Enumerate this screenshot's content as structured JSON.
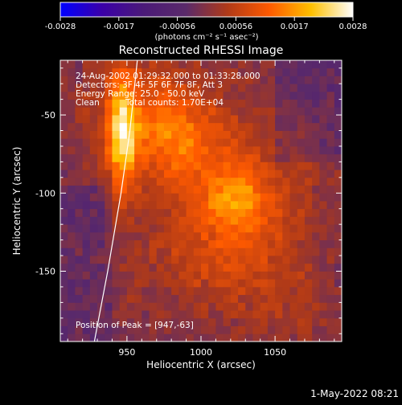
{
  "chart_data": {
    "type": "heatmap",
    "title": "Reconstructed RHESSI Image",
    "xlabel": "Heliocentric X (arcsec)",
    "ylabel": "Heliocentric Y (arcsec)",
    "xlim": [
      905,
      1095
    ],
    "ylim": [
      -195,
      -15
    ],
    "x_ticks": [
      950,
      1000,
      1050
    ],
    "y_ticks": [
      -50,
      -100,
      -150
    ],
    "grid": false,
    "colorbar": {
      "position": "top",
      "min": -0.0028,
      "max": 0.0028,
      "ticks": [
        "-0.0028",
        "-0.0017",
        "-0.00056",
        "0.00056",
        "0.0017",
        "0.0028"
      ],
      "unit_label": "(photons cm⁻² s⁻¹ asec⁻²)",
      "colors": [
        "#0000ff",
        "#3b00a8",
        "#4b1a78",
        "#5a2a6a",
        "#b03a18",
        "#ff5a00",
        "#ffc000",
        "#ffffff"
      ]
    },
    "peak": {
      "x": 947,
      "y": -63,
      "value": 0.0028
    },
    "sources": [
      {
        "x": 947,
        "y": -63,
        "sx": 7,
        "sy": 26,
        "amp": 1.0
      },
      {
        "x": 965,
        "y": -45,
        "sx": 30,
        "sy": 25,
        "amp": 0.45
      },
      {
        "x": 980,
        "y": -70,
        "sx": 22,
        "sy": 18,
        "amp": 0.35
      },
      {
        "x": 1010,
        "y": -85,
        "sx": 30,
        "sy": 30,
        "amp": 0.35
      },
      {
        "x": 1025,
        "y": -103,
        "sx": 15,
        "sy": 13,
        "amp": 0.5
      },
      {
        "x": 1030,
        "y": -130,
        "sx": 25,
        "sy": 25,
        "amp": 0.3
      },
      {
        "x": 990,
        "y": -145,
        "sx": 40,
        "sy": 25,
        "amp": 0.22
      },
      {
        "x": 1060,
        "y": -175,
        "sx": 25,
        "sy": 22,
        "amp": 0.18
      },
      {
        "x": 1065,
        "y": -85,
        "sx": 18,
        "sy": 30,
        "amp": 0.16
      }
    ],
    "limb": [
      {
        "x": 928,
        "y": -195
      },
      {
        "x": 937,
        "y": -150
      },
      {
        "x": 946,
        "y": -100
      },
      {
        "x": 952,
        "y": -60
      },
      {
        "x": 957,
        "y": -15
      }
    ]
  },
  "annotations": {
    "time_range": "24-Aug-2002 01:29:32.000 to 01:33:28.000",
    "detectors": "Detectors: 3F 4F 5F 6F 7F 8F, Att 3",
    "energy_range": "Energy Range: 25.0 - 50.0 keV",
    "clean": "Clean",
    "total_counts": "Total counts: 1.70E+04",
    "peak_position": "Position of Peak = [947,-63]"
  },
  "footer": {
    "date": "1-May-2022 08:21"
  }
}
